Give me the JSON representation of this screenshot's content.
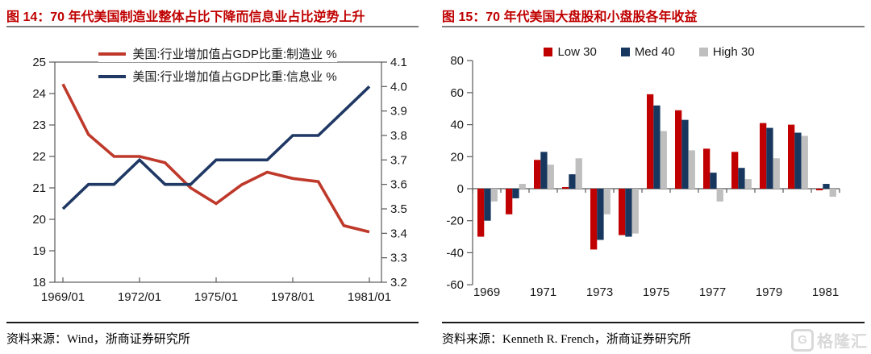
{
  "left_panel": {
    "title": "图 14：70 年代美国制造业整体占比下降而信息业占比逆势上升",
    "source_label": "资料来源：",
    "source_rest": "Wind，浙商证券研究所"
  },
  "right_panel": {
    "title": "图 15：70 年代美国大盘股和小盘股各年收益",
    "source_label": "资料来源：",
    "source_rest": "Kenneth R. French，浙商证券研究所"
  },
  "logo": {
    "icon": "G",
    "text": "格隆汇"
  },
  "colors": {
    "title_red": "#c00000",
    "line_manufacturing": "#bf392b",
    "line_information": "#1f3864",
    "bar_low30": "#c00000",
    "bar_med40": "#17375e",
    "bar_high30": "#bfbfbf",
    "axis": "#595959",
    "text": "#1a1a1a",
    "logo_gray": "#d9d9d9"
  },
  "chart_data": [
    {
      "type": "line",
      "title": "",
      "x": [
        "1969",
        "1970",
        "1971",
        "1972",
        "1973",
        "1974",
        "1975",
        "1976",
        "1977",
        "1978",
        "1979",
        "1980",
        "1981"
      ],
      "x_tick_labels": [
        "1969/01",
        "1972/01",
        "1975/01",
        "1978/01",
        "1981/01"
      ],
      "x_tick_indices": [
        0,
        3,
        6,
        9,
        12
      ],
      "series": [
        {
          "name": "美国:行业增加值占GDP比重:制造业 %",
          "axis": "left",
          "color": "#bf392b",
          "values": [
            24.3,
            22.7,
            22.0,
            22.0,
            21.8,
            21.0,
            20.5,
            21.1,
            21.5,
            21.3,
            21.2,
            19.8,
            19.6
          ]
        },
        {
          "name": "美国:行业增加值占GDP比重:信息业 %",
          "axis": "right",
          "color": "#1f3864",
          "values": [
            3.5,
            3.6,
            3.6,
            3.7,
            3.6,
            3.6,
            3.7,
            3.7,
            3.7,
            3.8,
            3.8,
            3.9,
            4.0
          ]
        }
      ],
      "left_axis": {
        "min": 18,
        "max": 25,
        "ticks": [
          25,
          24,
          23,
          22,
          21,
          20,
          19,
          18
        ]
      },
      "right_axis": {
        "min": 3.2,
        "max": 4.1,
        "ticks": [
          4.1,
          4.0,
          3.9,
          3.8,
          3.7,
          3.6,
          3.5,
          3.4,
          3.3,
          3.2
        ]
      },
      "legend_position": "top",
      "grid": false
    },
    {
      "type": "bar",
      "title": "",
      "categories": [
        "1969",
        "1970",
        "1971",
        "1972",
        "1973",
        "1974",
        "1975",
        "1976",
        "1977",
        "1978",
        "1979",
        "1980",
        "1981"
      ],
      "x_tick_labels": [
        "1969",
        "1971",
        "1973",
        "1975",
        "1977",
        "1979",
        "1981"
      ],
      "series": [
        {
          "name": "Low 30",
          "color": "#c00000",
          "values": [
            -30,
            -16,
            18,
            1,
            -38,
            -29,
            59,
            49,
            25,
            23,
            41,
            40,
            -1
          ]
        },
        {
          "name": "Med 40",
          "color": "#17375e",
          "values": [
            -20,
            -6,
            23,
            9,
            -32,
            -30,
            52,
            43,
            10,
            13,
            38,
            35,
            3
          ]
        },
        {
          "name": "High 30",
          "color": "#bfbfbf",
          "values": [
            -8,
            3,
            15,
            19,
            -16,
            -28,
            36,
            24,
            -8,
            6,
            19,
            33,
            -5
          ]
        }
      ],
      "y_axis": {
        "min": -60,
        "max": 80,
        "ticks": [
          80,
          60,
          40,
          20,
          0,
          -20,
          -40,
          -60
        ]
      },
      "legend_position": "top",
      "grid": false
    }
  ]
}
